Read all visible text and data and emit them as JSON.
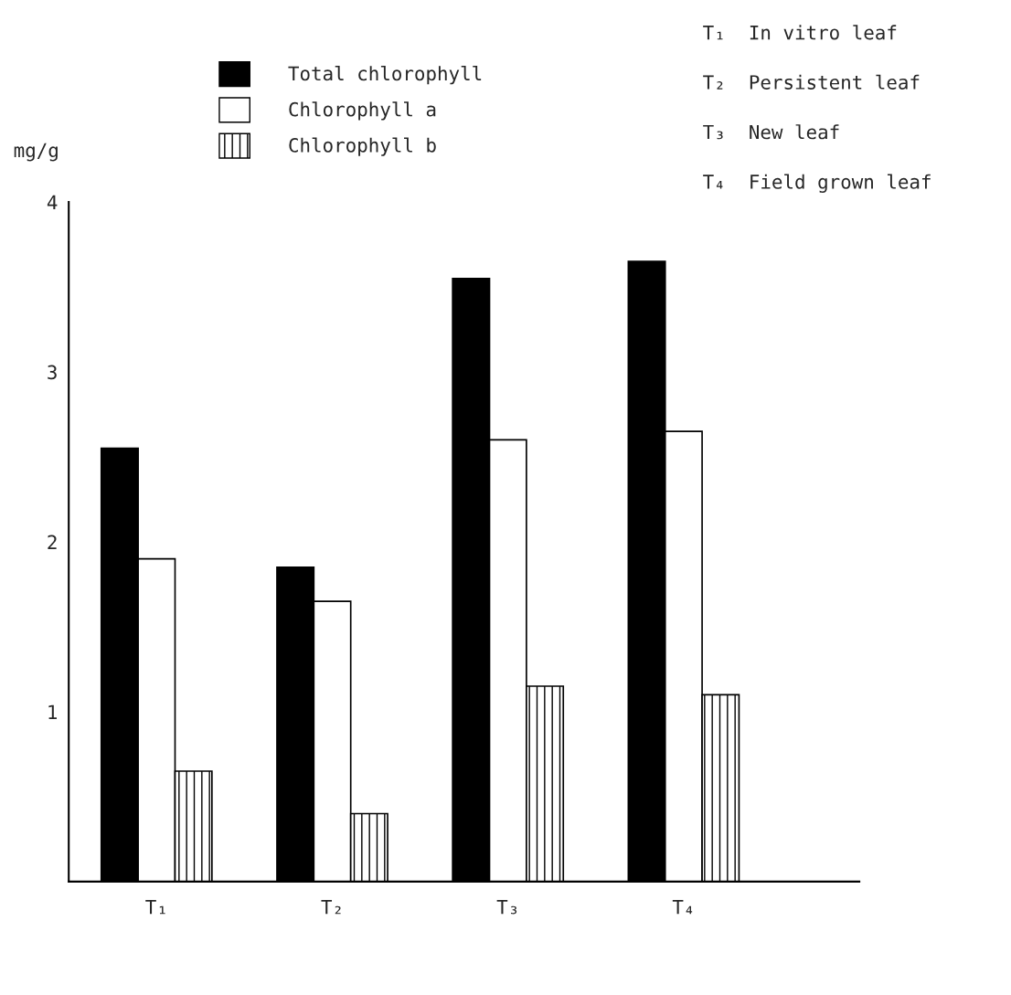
{
  "chart_data": {
    "type": "bar",
    "ylabel": "mg/g",
    "categories": [
      "T₁",
      "T₂",
      "T₃",
      "T₄"
    ],
    "series": [
      {
        "name": "Total chlorophyll",
        "color": "#000000",
        "values": [
          2.55,
          1.85,
          3.55,
          3.65
        ]
      },
      {
        "name": "Chlorophyll a",
        "color": "#ffffff",
        "values": [
          1.9,
          1.65,
          2.6,
          2.65
        ]
      },
      {
        "name": "Chlorophyll b",
        "color": "#000000",
        "values": [
          0.65,
          0.4,
          1.15,
          1.1
        ]
      }
    ],
    "ylim": [
      0,
      4
    ],
    "yticks": [
      1,
      2,
      3,
      4
    ],
    "grid": false,
    "legend": "top",
    "annotations": [
      "T₁  In vitro leaf",
      "T₂  Persistent leaf",
      "T₃  New leaf",
      "T₄  Field grown leaf"
    ]
  }
}
